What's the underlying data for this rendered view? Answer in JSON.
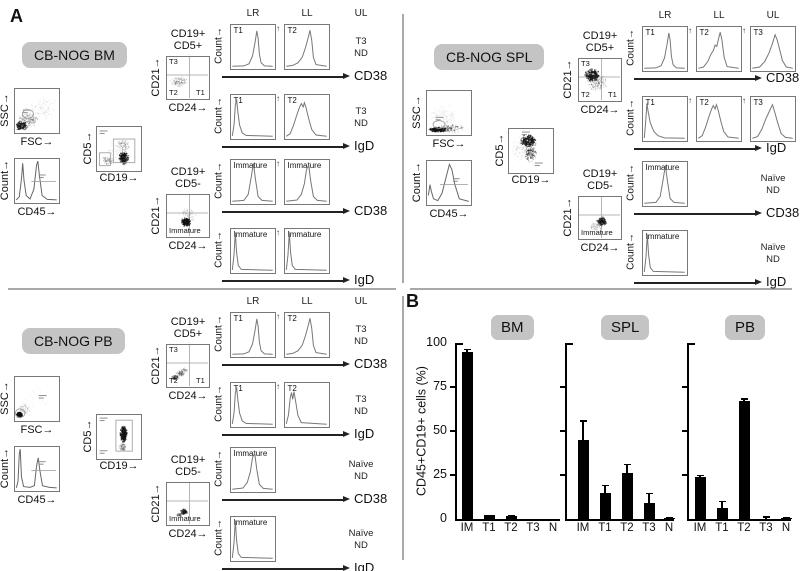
{
  "figure": {
    "panel_a_label": "A",
    "panel_b_label": "B"
  },
  "panel_a": {
    "count_axis_label": "Count→",
    "up_arrow": "↑",
    "sections": [
      {
        "id": "bm",
        "badge": "CB-NOG BM",
        "ssc_plot": {
          "ylabel": "SSC→",
          "xlabel": "FSC→"
        },
        "cd45_plot": {
          "ylabel": "Count→",
          "xlabel": "CD45→"
        },
        "cd5_plot": {
          "ylabel": "CD5→",
          "xlabel": "CD19→"
        },
        "quad1": {
          "title_line1": "CD19+",
          "title_line2": "CD5+",
          "ylabel": "CD21→",
          "xlabel": "CD24→",
          "corner_labels": [
            "T3",
            "T2",
            "T1"
          ]
        },
        "quad2": {
          "title_line1": "CD19+",
          "title_line2": "CD5-",
          "ylabel": "CD21→",
          "xlabel": "CD24→",
          "corner_labels": [
            "Immature"
          ]
        },
        "col_headers": [
          "LR",
          "LL",
          "UL"
        ],
        "rows": [
          {
            "axis_label": "CD38",
            "hists": [
              "T1",
              "T2"
            ],
            "note": [
              "T3",
              "ND"
            ]
          },
          {
            "axis_label": "IgD",
            "hists": [
              "T1",
              "T2"
            ],
            "note": [
              "T3",
              "ND"
            ]
          },
          {
            "axis_label": "CD38",
            "hists": [
              "Immature",
              "Immature"
            ],
            "note": []
          },
          {
            "axis_label": "IgD",
            "hists": [
              "Immature",
              "Immature"
            ],
            "note": []
          }
        ]
      },
      {
        "id": "spl",
        "badge": "CB-NOG SPL",
        "ssc_plot": {
          "ylabel": "SSC→",
          "xlabel": "FSC→"
        },
        "cd45_plot": {
          "ylabel": "Count→",
          "xlabel": "CD45→"
        },
        "cd5_plot": {
          "ylabel": "CD5→",
          "xlabel": "CD19→"
        },
        "quad1": {
          "title_line1": "CD19+",
          "title_line2": "CD5+",
          "ylabel": "CD21→",
          "xlabel": "CD24→",
          "corner_labels": [
            "T3",
            "T2",
            "T1"
          ]
        },
        "quad2": {
          "title_line1": "CD19+",
          "title_line2": "CD5-",
          "ylabel": "CD21→",
          "xlabel": "CD24→",
          "corner_labels": [
            "Immature"
          ]
        },
        "col_headers": [
          "LR",
          "LL",
          "UL"
        ],
        "rows": [
          {
            "axis_label": "CD38",
            "hists": [
              "T1",
              "T2",
              "T3"
            ],
            "note": []
          },
          {
            "axis_label": "IgD",
            "hists": [
              "T1",
              "T2",
              "T3"
            ],
            "note": []
          },
          {
            "axis_label": "CD38",
            "hists": [
              "Immature"
            ],
            "note": [
              "Naïve",
              "ND"
            ]
          },
          {
            "axis_label": "IgD",
            "hists": [
              "Immature"
            ],
            "note": [
              "Naïve",
              "ND"
            ]
          }
        ]
      },
      {
        "id": "pb",
        "badge": "CB-NOG PB",
        "ssc_plot": {
          "ylabel": "SSC→",
          "xlabel": "FSC→"
        },
        "cd45_plot": {
          "ylabel": "Count→",
          "xlabel": "CD45→"
        },
        "cd5_plot": {
          "ylabel": "CD5→",
          "xlabel": "CD19→"
        },
        "quad1": {
          "title_line1": "CD19+",
          "title_line2": "CD5+",
          "ylabel": "CD21→",
          "xlabel": "CD24→",
          "corner_labels": [
            "T3",
            "T2",
            "T1"
          ]
        },
        "quad2": {
          "title_line1": "CD19+",
          "title_line2": "CD5-",
          "ylabel": "CD21→",
          "xlabel": "CD24→",
          "corner_labels": [
            "Immature"
          ]
        },
        "col_headers": [
          "LR",
          "LL",
          "UL"
        ],
        "rows": [
          {
            "axis_label": "CD38",
            "hists": [
              "T1",
              "T2"
            ],
            "note": [
              "T3",
              "ND"
            ]
          },
          {
            "axis_label": "IgD",
            "hists": [
              "T1",
              "T2"
            ],
            "note": [
              "T3",
              "ND"
            ]
          },
          {
            "axis_label": "CD38",
            "hists": [
              "Immature"
            ],
            "note": [
              "Naïve",
              "ND"
            ]
          },
          {
            "axis_label": "IgD",
            "hists": [
              "Immature"
            ],
            "note": [
              "Naïve",
              "ND"
            ]
          }
        ]
      }
    ]
  },
  "panel_b": {
    "ylabel": "CD45+CD19+ cells (%)",
    "ytick_labels": [
      "100",
      "75",
      "50",
      "25",
      "0"
    ]
  },
  "chart_data": {
    "type": "bar",
    "categories": [
      "IM",
      "T1",
      "T2",
      "T3",
      "N"
    ],
    "ylabel": "CD45+CD19+ cells (%)",
    "ylim": [
      0,
      100
    ],
    "yticks": [
      0,
      25,
      50,
      75,
      100
    ],
    "grid": false,
    "legend_position": "none",
    "series": [
      {
        "name": "BM",
        "values": [
          95,
          2,
          1.5,
          0,
          0
        ],
        "errors": [
          1.5,
          0.5,
          0.5,
          0,
          0
        ]
      },
      {
        "name": "SPL",
        "values": [
          45,
          15,
          26,
          9,
          0.6
        ],
        "errors": [
          11,
          4.5,
          5.5,
          6,
          0.4
        ]
      },
      {
        "name": "PB",
        "values": [
          24,
          6.5,
          67,
          0.3,
          0.7
        ],
        "errors": [
          1,
          4,
          1.5,
          1.2,
          0.5
        ]
      }
    ]
  }
}
